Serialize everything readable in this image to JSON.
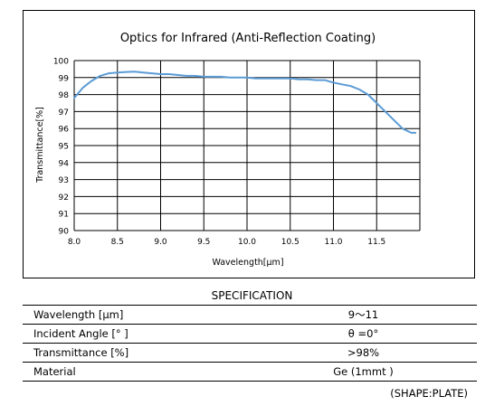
{
  "chart_data": {
    "type": "line",
    "title": "Optics for Infrared (Anti-Reflection Coating)",
    "xlabel": "Wavelength[μm]",
    "ylabel": "Transmittance[%]",
    "xlim": [
      8.0,
      12.0
    ],
    "ylim": [
      90,
      100
    ],
    "x_ticks": [
      "8.0",
      "8.5",
      "9.0",
      "9.5",
      "10.0",
      "10.5",
      "11.0",
      "11.5"
    ],
    "y_ticks": [
      "90",
      "91",
      "92",
      "93",
      "94",
      "95",
      "96",
      "97",
      "98",
      "99",
      "100"
    ],
    "grid": true,
    "line_color": "#5b9bd5",
    "series": [
      {
        "x": [
          8.0,
          8.1,
          8.2,
          8.3,
          8.4,
          8.5,
          8.6,
          8.7,
          8.8,
          8.9,
          9.0,
          9.1,
          9.2,
          9.3,
          9.4,
          9.5,
          9.6,
          9.7,
          9.8,
          9.9,
          10.0,
          10.1,
          10.2,
          10.3,
          10.4,
          10.5,
          10.6,
          10.7,
          10.8,
          10.9,
          11.0,
          11.1,
          11.2,
          11.3,
          11.4,
          11.5,
          11.6,
          11.7,
          11.8,
          11.9,
          11.95
        ],
        "values": [
          97.8,
          98.4,
          98.8,
          99.1,
          99.25,
          99.3,
          99.33,
          99.35,
          99.3,
          99.25,
          99.2,
          99.2,
          99.15,
          99.1,
          99.1,
          99.05,
          99.05,
          99.05,
          99.0,
          99.0,
          99.0,
          98.95,
          98.95,
          98.95,
          98.95,
          98.95,
          98.9,
          98.9,
          98.85,
          98.85,
          98.7,
          98.6,
          98.5,
          98.3,
          98.0,
          97.5,
          97.0,
          96.5,
          96.0,
          95.75,
          95.75
        ]
      }
    ]
  },
  "spec": {
    "title": "SPECIFICATION",
    "rows": [
      {
        "label": "Wavelength  [μm]",
        "value": "9〜11"
      },
      {
        "label": "Incident Angle  [° ]",
        "value": "θ =0°"
      },
      {
        "label": "Transmittance  [%]",
        "value": ">98%"
      },
      {
        "label": "Material",
        "value": "Ge (1mmt )"
      }
    ],
    "note": "(SHAPE:PLATE)"
  }
}
